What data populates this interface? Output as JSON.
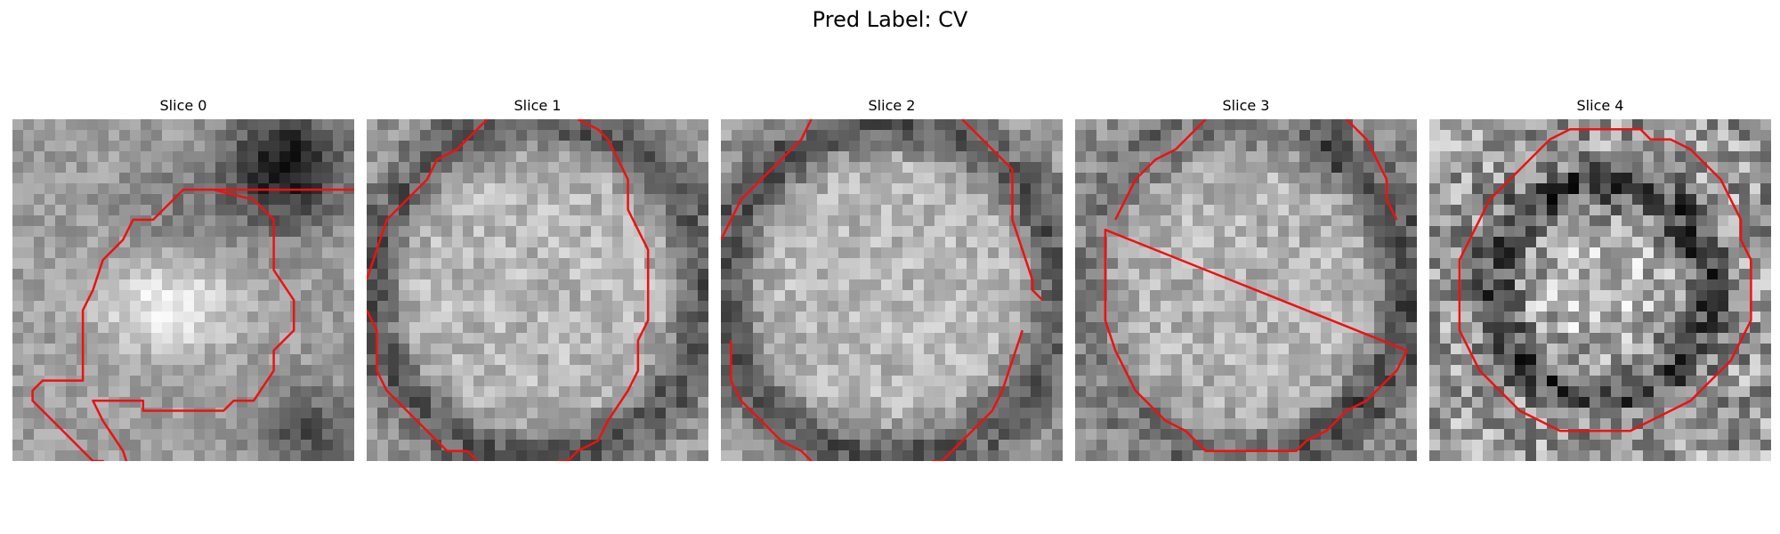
{
  "figure": {
    "title": "Pred Label: CV",
    "contour_color": "#ee1111"
  },
  "slices": [
    {
      "label": "Slice 0",
      "pattern": "blob"
    },
    {
      "label": "Slice 1",
      "pattern": "disk-dark-rim"
    },
    {
      "label": "Slice 2",
      "pattern": "disk-dark-rim"
    },
    {
      "label": "Slice 3",
      "pattern": "disk-bright"
    },
    {
      "label": "Slice 4",
      "pattern": "ring-noisy"
    }
  ]
}
